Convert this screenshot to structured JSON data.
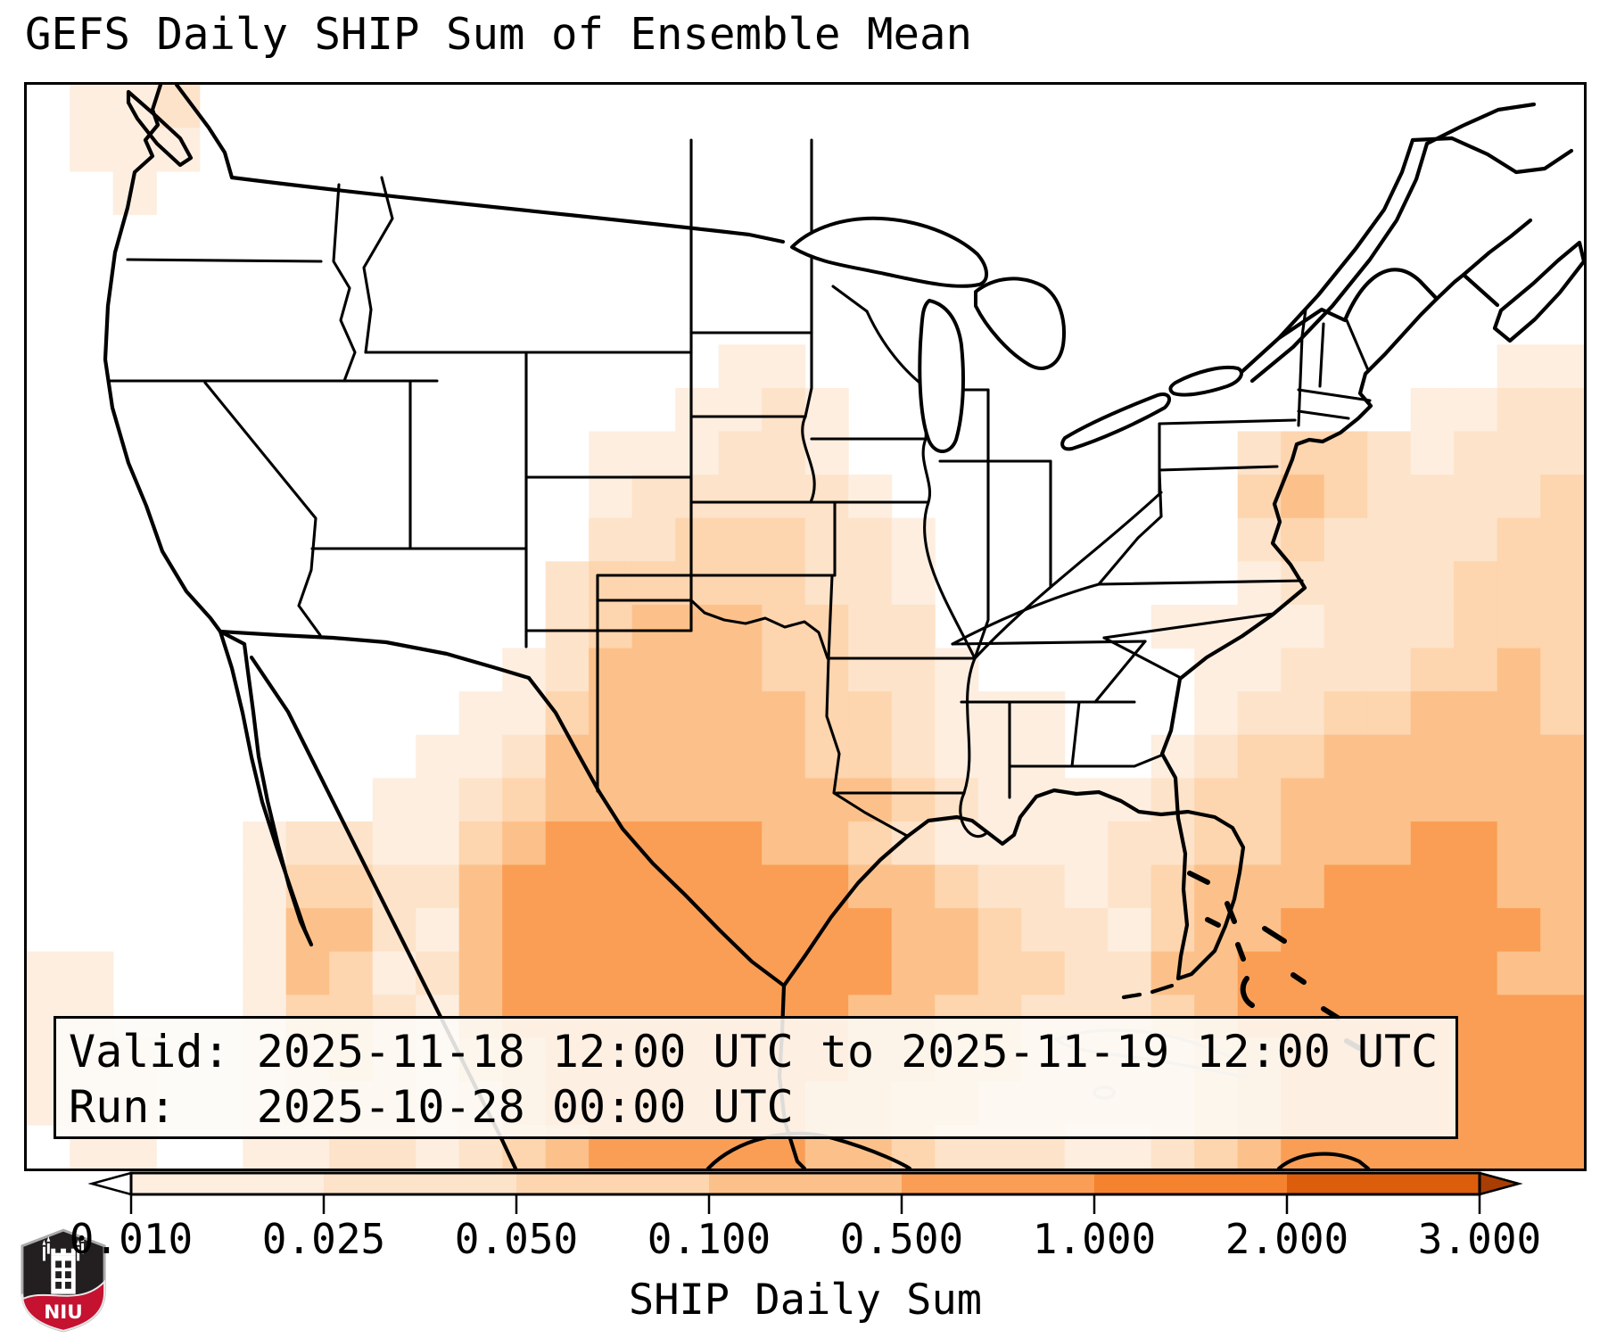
{
  "title": "GEFS Daily SHIP Sum of Ensemble Mean",
  "info_box": {
    "line1": "Valid: 2025-11-18 12:00 UTC to 2025-11-19 12:00 UTC",
    "line2": "Run:   2025-10-28 00:00 UTC"
  },
  "colorbar": {
    "label": "SHIP Daily Sum",
    "tick_labels": [
      "0.010",
      "0.025",
      "0.050",
      "0.100",
      "0.500",
      "1.000",
      "2.000",
      "3.000"
    ],
    "segment_colors": [
      "#fdeee0",
      "#fde3c9",
      "#fdd5af",
      "#fcc18a",
      "#fa9e55",
      "#f5822f",
      "#dc5e0d"
    ],
    "under_arrow_color": "#ffffff",
    "over_arrow_color": "#a83e03"
  },
  "logo": {
    "label": "NIU",
    "shield_color": "#231f20",
    "banner_color": "#c41230"
  },
  "map": {
    "background_color": "#ffffff",
    "border_color": "#000000",
    "minor_coast_color": "#c6c6c6",
    "grid_cols": 36,
    "grid_rows": 25,
    "heat_grid": [
      "011200000000000000000000000000000000",
      "011100000000000000000000000000000000",
      "001000000000000000000000000000000000",
      "000000000000000000000000000000000000",
      "000000000000000000000000000000000000",
      "000000000000000000000000000000000000",
      "000000000000000011000000000000000011",
      "000000000000000112100000000000001122",
      "000000000000011122100000000023321222",
      "000000000000012222210000000034322223",
      "000000000000022333221000000023222233",
      "000000000000233333221000000012222333",
      "000000000000234443322000001111222333",
      "000000000001244443322100000112223343",
      "000000000011344444332111000122334443",
      "000000000112444444332111001233444444",
      "000000001123444444443211112334444444",
      "000001221134555554432111122334445544",
      "000001332245555555544322123444555544",
      "000001442145555555554432213445555554",
      "110001431245555555554433224455555544",
      "110001332145555555544332223455555555",
      "111001232134555555544332222345555555",
      "111001222124555555443322222345555555",
      "011001122123455555443222112345555555"
    ]
  }
}
